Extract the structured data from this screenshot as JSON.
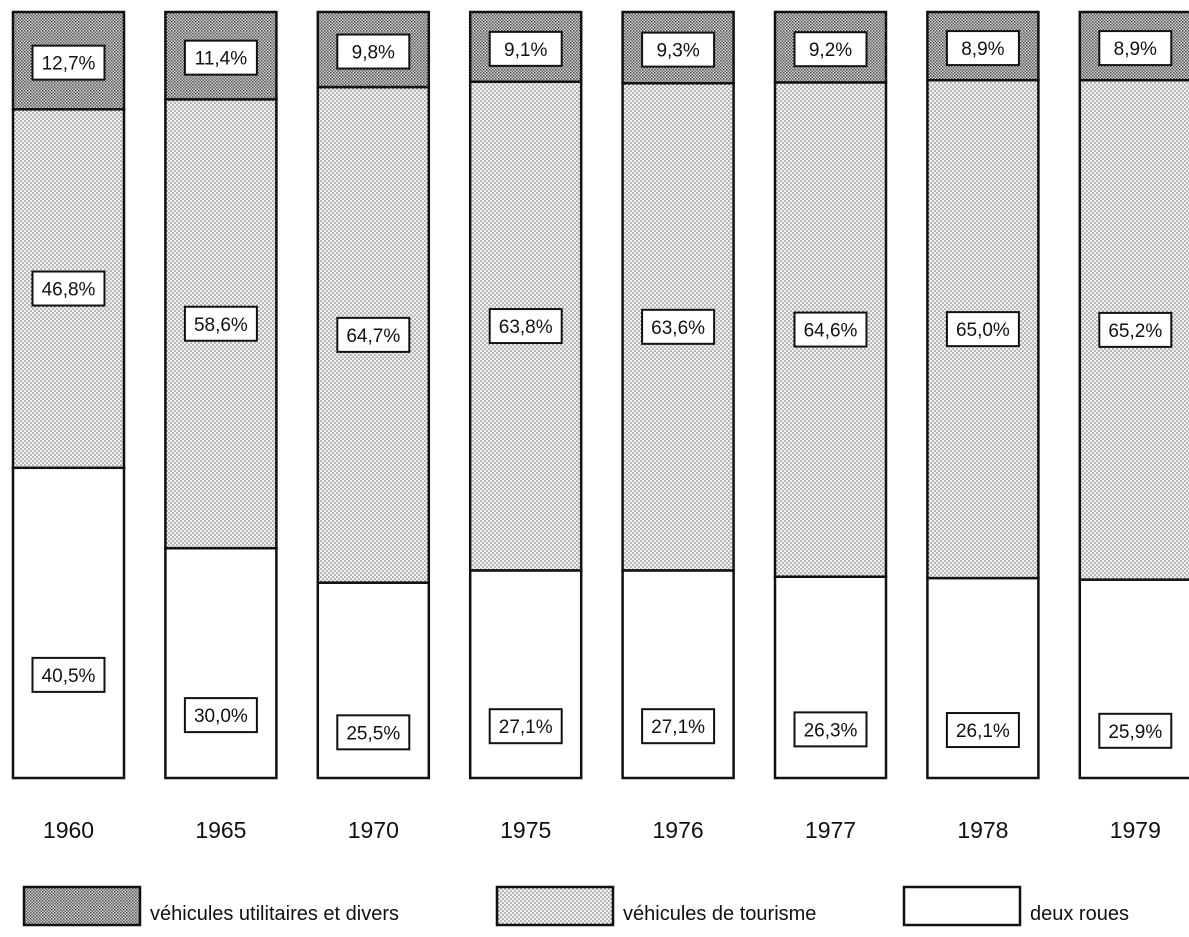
{
  "chart_data": {
    "type": "bar",
    "stacked": true,
    "normalized_percent": true,
    "categories": [
      "1960",
      "1965",
      "1970",
      "1975",
      "1976",
      "1977",
      "1978",
      "1979"
    ],
    "series": [
      {
        "name": "deux roues",
        "values": [
          40.5,
          30.0,
          25.5,
          27.1,
          27.1,
          26.3,
          26.1,
          25.9
        ],
        "labels": [
          "40,5%",
          "30,0%",
          "25,5%",
          "27,1%",
          "27,1%",
          "26,3%",
          "26,1%",
          "25,9%"
        ],
        "pattern": "white"
      },
      {
        "name": "véhicules de tourisme",
        "values": [
          46.8,
          58.6,
          64.7,
          63.8,
          63.6,
          64.6,
          65.0,
          65.2
        ],
        "labels": [
          "46,8%",
          "58,6%",
          "64,7%",
          "63,8%",
          "63,6%",
          "64,6%",
          "65,0%",
          "65,2%"
        ],
        "pattern": "light-dots"
      },
      {
        "name": "véhicules utilitaires et divers",
        "values": [
          12.7,
          11.4,
          9.8,
          9.1,
          9.3,
          9.2,
          8.9,
          8.9
        ],
        "labels": [
          "12,7%",
          "11,4%",
          "9,8%",
          "9,1%",
          "9,3%",
          "9,2%",
          "8,9%",
          "8,9%"
        ],
        "pattern": "dark-dots"
      }
    ],
    "ylim": [
      0,
      100
    ],
    "grid": false,
    "legend_position": "bottom",
    "title": "",
    "xlabel": "",
    "ylabel": ""
  }
}
